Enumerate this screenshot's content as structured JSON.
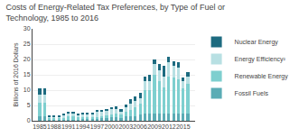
{
  "chart_data": {
    "type": "bar",
    "stacked": true,
    "title": "Costs of Energy-Related Tax Preferences, by Type of Fuel or Technology, 1985 to 2016",
    "ylabel": "Billions of 2016 Dollars",
    "x": [
      1985,
      1986,
      1987,
      1988,
      1989,
      1990,
      1991,
      1992,
      1993,
      1994,
      1995,
      1996,
      1997,
      1998,
      1999,
      2000,
      2001,
      2002,
      2003,
      2004,
      2005,
      2006,
      2007,
      2008,
      2009,
      2010,
      2011,
      2012,
      2013,
      2014,
      2015,
      2016
    ],
    "series": [
      {
        "name": "Fossil Fuels",
        "color": "#5aacb5",
        "values": [
          1.5,
          1.5,
          0.4,
          0.4,
          0.4,
          0.4,
          0.4,
          0.4,
          0.4,
          0.5,
          0.5,
          0.5,
          0.7,
          0.8,
          1.0,
          1.2,
          1.2,
          1.0,
          1.5,
          1.5,
          1.5,
          2.0,
          2.5,
          2.5,
          2.5,
          2.5,
          2.5,
          2.5,
          2.5,
          2.5,
          2.5,
          2.5
        ]
      },
      {
        "name": "Renewable Energy",
        "color": "#7ecfcf",
        "values": [
          4.5,
          4.5,
          0.5,
          0.5,
          0.5,
          0.5,
          1.0,
          1.0,
          0.8,
          0.8,
          0.6,
          0.6,
          0.6,
          0.6,
          0.8,
          1.0,
          1.2,
          1.0,
          1.5,
          2.0,
          3.0,
          3.5,
          7.5,
          7.5,
          12.5,
          10.5,
          8.5,
          12.0,
          11.5,
          11.0,
          8.0,
          9.5
        ]
      },
      {
        "name": "Energy Efficiency²",
        "color": "#b8e0e3",
        "values": [
          2.5,
          2.5,
          0.5,
          0.5,
          0.5,
          1.0,
          1.0,
          1.0,
          0.8,
          1.0,
          1.2,
          1.2,
          1.5,
          1.5,
          1.5,
          1.5,
          1.5,
          1.0,
          1.5,
          2.0,
          2.0,
          2.0,
          3.0,
          3.0,
          3.5,
          3.5,
          3.5,
          4.5,
          4.0,
          4.0,
          2.5,
          2.5
        ]
      },
      {
        "name": "Nuclear Energy",
        "color": "#1d6b80",
        "values": [
          2.0,
          2.0,
          0.3,
          0.3,
          0.3,
          0.3,
          0.4,
          0.4,
          0.4,
          0.4,
          0.4,
          0.4,
          0.6,
          0.6,
          0.6,
          0.8,
          0.8,
          0.7,
          0.8,
          1.5,
          1.5,
          1.5,
          1.5,
          2.0,
          1.5,
          2.0,
          3.5,
          2.0,
          1.5,
          1.5,
          1.2,
          1.5
        ]
      }
    ],
    "xlim": [
      1983.5,
      2017.5
    ],
    "xticks": [
      1985,
      1988,
      1991,
      1994,
      1997,
      2000,
      2003,
      2006,
      2009,
      2012,
      2015
    ],
    "ylim": [
      0,
      30
    ],
    "yticks": [
      0,
      5,
      10,
      15,
      20,
      25,
      30
    ],
    "grid": true,
    "legend": "right"
  }
}
